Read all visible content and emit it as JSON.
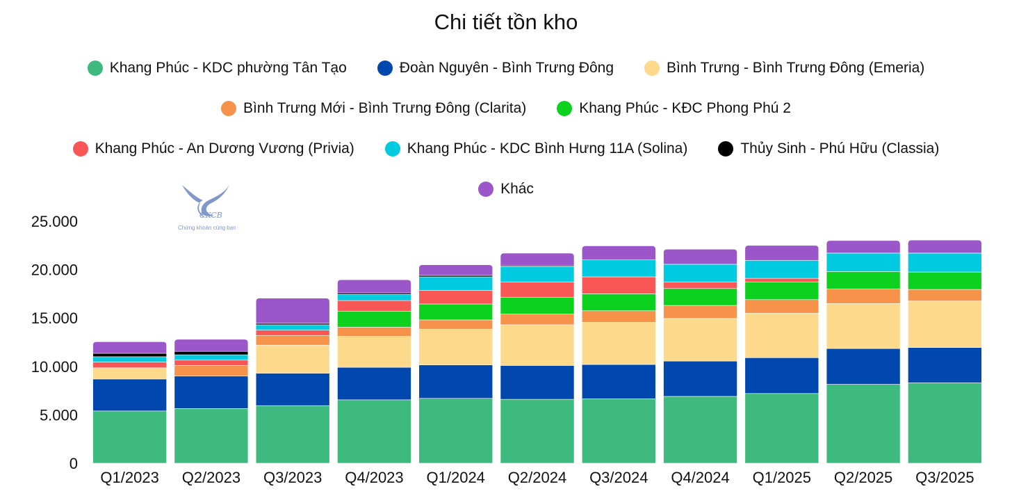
{
  "chart_data": {
    "type": "bar",
    "stacked": true,
    "title": "Chi tiết tồn kho",
    "xlabel": "",
    "ylabel": "",
    "ylim": [
      0,
      25000
    ],
    "yticks": [
      "0",
      "5.000",
      "10.000",
      "15.000",
      "20.000",
      "25.000"
    ],
    "ytick_values": [
      0,
      5000,
      10000,
      15000,
      20000,
      25000
    ],
    "grid": false,
    "legend_position": "top",
    "categories": [
      "Q1/2023",
      "Q2/2023",
      "Q3/2023",
      "Q4/2023",
      "Q1/2024",
      "Q2/2024",
      "Q3/2024",
      "Q4/2024",
      "Q1/2025",
      "Q2/2025",
      "Q3/2025"
    ],
    "series": [
      {
        "name": "Khang Phúc - KDC phường Tân Tạo",
        "color": "#3fba7e",
        "values": [
          5400,
          5650,
          5950,
          6550,
          6700,
          6600,
          6650,
          6900,
          7200,
          8150,
          8300
        ]
      },
      {
        "name": "Đoàn Nguyên - Bình Trưng Đông",
        "color": "#0048ad",
        "values": [
          3300,
          3350,
          3350,
          3350,
          3450,
          3500,
          3550,
          3650,
          3700,
          3700,
          3650
        ]
      },
      {
        "name": "Bình Trưng - Bình Trưng Đông (Emeria)",
        "color": "#fdd98c",
        "values": [
          1150,
          0,
          2900,
          3200,
          3700,
          4200,
          4350,
          4400,
          4600,
          4650,
          4800
        ]
      },
      {
        "name": "Bình Trưng Mới - Bình Trưng Đông (Clarita)",
        "color": "#f7924a",
        "values": [
          0,
          1100,
          1000,
          950,
          950,
          1100,
          1200,
          1350,
          1400,
          1500,
          1200
        ]
      },
      {
        "name": "Khang Phúc - KĐC Phong Phú 2",
        "color": "#0dd11f",
        "values": [
          0,
          0,
          0,
          1650,
          1650,
          1750,
          1750,
          1750,
          1800,
          1800,
          1800
        ]
      },
      {
        "name": "Khang Phúc - An Dương Vương (Privia)",
        "color": "#f95656",
        "values": [
          600,
          550,
          550,
          1100,
          1400,
          1550,
          1750,
          650,
          400,
          0,
          0
        ]
      },
      {
        "name": "Khang Phúc - KDC Bình Hưng 11A (Solina)",
        "color": "#00cadf",
        "values": [
          550,
          550,
          550,
          650,
          1400,
          1600,
          1750,
          1850,
          1850,
          1900,
          1950
        ]
      },
      {
        "name": "Thủy Sinh - Phú Hữu (Classia)",
        "color": "#000000",
        "values": [
          350,
          350,
          150,
          150,
          150,
          100,
          0,
          0,
          0,
          0,
          0
        ]
      },
      {
        "name": "Khác",
        "color": "#9b56c9",
        "values": [
          1200,
          1250,
          2600,
          1350,
          1100,
          1300,
          1450,
          1550,
          1550,
          1300,
          1350
        ]
      }
    ]
  },
  "logo": {
    "text": "CKCB",
    "subtitle": "Chứng khoán cùng bạn"
  }
}
